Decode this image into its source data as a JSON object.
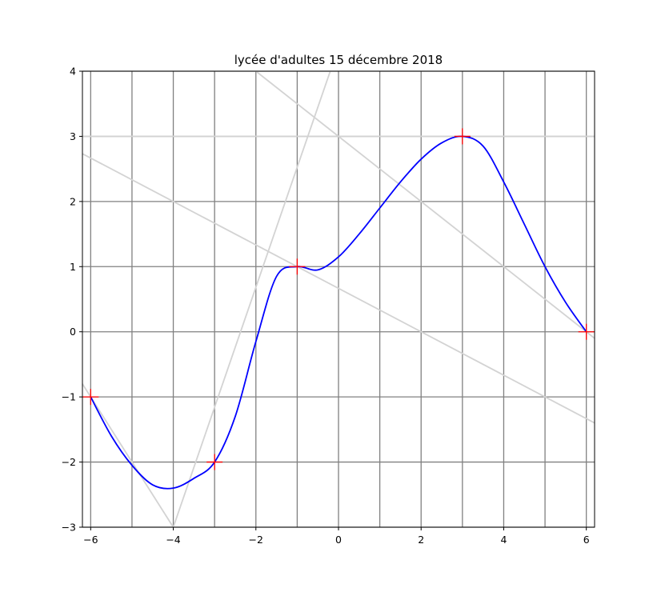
{
  "chart_data": {
    "type": "line",
    "title": "lycée d'adultes 15 décembre 2018",
    "xlabel": "",
    "ylabel": "",
    "xlim": [
      -6.2,
      6.2
    ],
    "ylim": [
      -3,
      4
    ],
    "grid": true,
    "grid_color": "#808080",
    "x_ticks": [
      -6,
      -4,
      -2,
      0,
      2,
      4,
      6
    ],
    "x_tick_labels": [
      "−6",
      "−4",
      "−2",
      "0",
      "2",
      "4",
      "6"
    ],
    "y_ticks": [
      -3,
      -2,
      -1,
      0,
      1,
      2,
      3,
      4
    ],
    "y_tick_labels": [
      "−3",
      "−2",
      "−1",
      "0",
      "1",
      "2",
      "3",
      "4"
    ],
    "x_gridlines": [
      -6,
      -5,
      -4,
      -3,
      -2,
      -1,
      0,
      1,
      2,
      3,
      4,
      5,
      6
    ],
    "y_gridlines": [
      -3,
      -2,
      -1,
      0,
      1,
      2,
      3,
      4
    ],
    "curve": {
      "color": "#0000ff",
      "x": [
        -6,
        -5.5,
        -5,
        -4.5,
        -4,
        -3.5,
        -3,
        -2.5,
        -2,
        -1.5,
        -1,
        -0.5,
        0,
        0.5,
        1,
        1.5,
        2,
        2.5,
        3,
        3.5,
        4,
        4.5,
        5,
        5.5,
        6
      ],
      "y": [
        -1,
        -1.6,
        -2.05,
        -2.35,
        -2.4,
        -2.25,
        -2,
        -1.3,
        -0.15,
        0.85,
        1,
        0.95,
        1.15,
        1.5,
        1.9,
        2.3,
        2.65,
        2.9,
        3,
        2.85,
        2.3,
        1.65,
        1,
        0.45,
        0
      ]
    },
    "tangent_lines": {
      "color": "#d3d3d3",
      "lines": [
        {
          "x": [
            -6.2,
            -4,
            -0.2
          ],
          "y": [
            -0.8,
            -3,
            4
          ]
        },
        {
          "x": [
            -6.2,
            6.2
          ],
          "y": [
            3,
            3
          ]
        },
        {
          "x": [
            -6.2,
            6.2
          ],
          "y": [
            2.7333,
            -1.4
          ]
        },
        {
          "x": [
            -2,
            6.2
          ],
          "y": [
            4,
            -0.1
          ]
        }
      ]
    },
    "points": {
      "color": "#ff0000",
      "x": [
        -6,
        -3,
        -1,
        3,
        6
      ],
      "y": [
        -1,
        -2,
        1,
        3,
        0
      ]
    }
  }
}
